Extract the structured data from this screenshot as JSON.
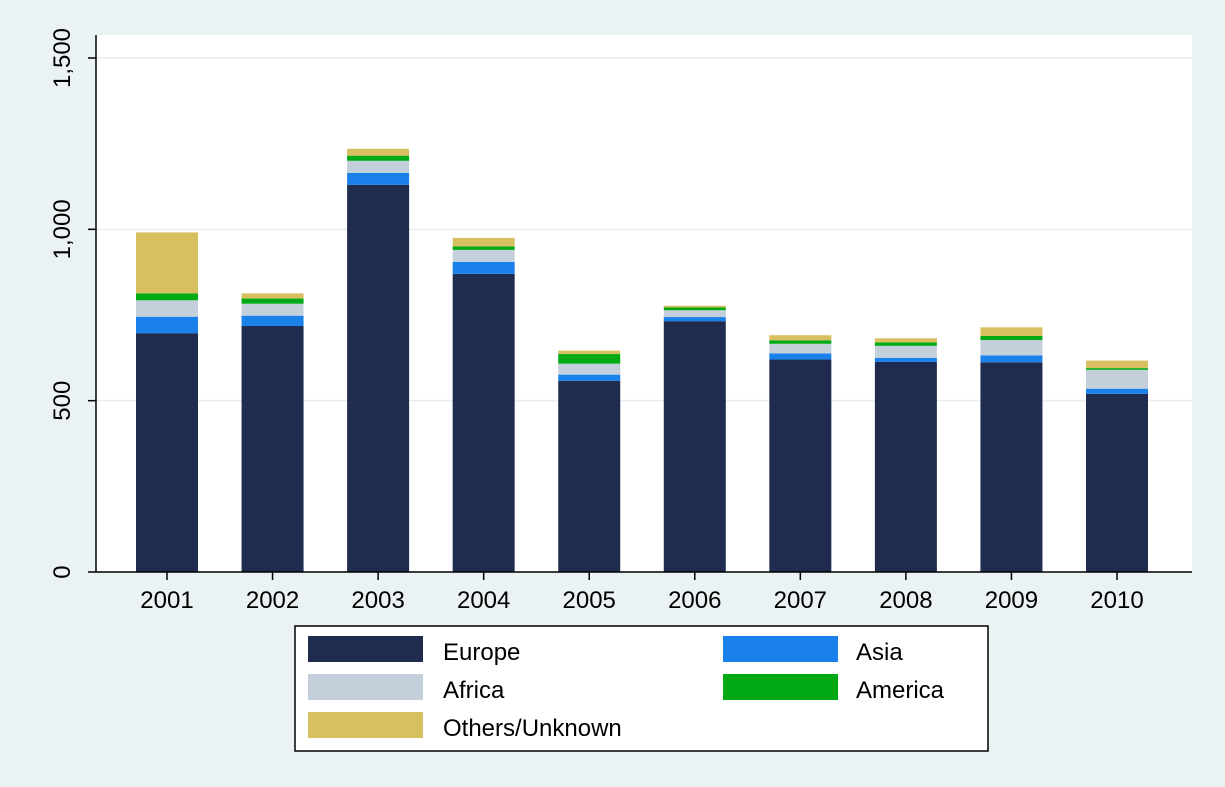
{
  "chart_data": {
    "type": "bar",
    "stacked": true,
    "title": "",
    "xlabel": "",
    "ylabel": "",
    "categories": [
      "2001",
      "2002",
      "2003",
      "2004",
      "2005",
      "2006",
      "2007",
      "2008",
      "2009",
      "2010"
    ],
    "ylim": [
      0,
      1550
    ],
    "yticks": [
      0,
      500,
      1000,
      1500
    ],
    "ytick_labels": [
      "0",
      "500",
      "1,000",
      "1,500"
    ],
    "grid": true,
    "legend_position": "bottom",
    "series": [
      {
        "name": "Europe",
        "color": "#1f2b4f",
        "values": [
          697,
          718,
          1130,
          870,
          558,
          732,
          620,
          613,
          612,
          520
        ]
      },
      {
        "name": "Asia",
        "color": "#1a80ea",
        "values": [
          48,
          30,
          35,
          35,
          18,
          12,
          18,
          12,
          20,
          15
        ]
      },
      {
        "name": "Africa",
        "color": "#c3d0dc",
        "values": [
          48,
          35,
          35,
          35,
          32,
          20,
          28,
          35,
          45,
          55
        ]
      },
      {
        "name": "America",
        "color": "#00aa14",
        "values": [
          20,
          15,
          15,
          10,
          28,
          8,
          10,
          10,
          12,
          5
        ]
      },
      {
        "name": "Others/Unknown",
        "color": "#d8c060",
        "values": [
          178,
          15,
          20,
          25,
          10,
          5,
          15,
          12,
          25,
          22
        ]
      }
    ]
  }
}
